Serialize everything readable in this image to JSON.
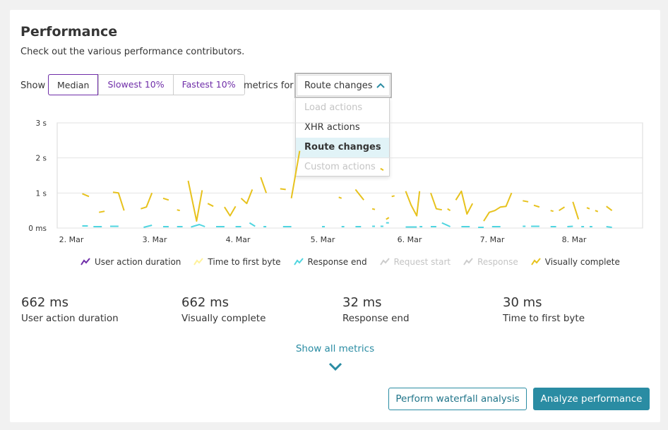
{
  "header": {
    "title": "Performance",
    "subtitle": "Check out the various performance contributors."
  },
  "controls": {
    "show_label": "Show",
    "segments": [
      {
        "label": "Median",
        "active": true
      },
      {
        "label": "Slowest 10%",
        "active": false
      },
      {
        "label": "Fastest 10%",
        "active": false
      }
    ],
    "metrics_for_label": "metrics for",
    "dropdown": {
      "selected": "Route changes",
      "expanded": true,
      "options": [
        {
          "label": "Load actions",
          "state": "disabled"
        },
        {
          "label": "XHR actions",
          "state": "enabled"
        },
        {
          "label": "Route changes",
          "state": "selected"
        },
        {
          "label": "Custom actions",
          "state": "disabled"
        }
      ]
    }
  },
  "chart_data": {
    "type": "line",
    "y_ticks": [
      "3 s",
      "2 s",
      "1 s",
      "0 ms"
    ],
    "ylim": [
      0,
      3
    ],
    "x_ticks": [
      "2. Mar",
      "3. Mar",
      "4. Mar",
      "5. Mar",
      "6. Mar",
      "7. Mar",
      "8. Mar"
    ],
    "legend": [
      {
        "name": "User action duration",
        "color": "#6f2da8",
        "enabled": true
      },
      {
        "name": "Time to first byte",
        "color": "#fff29a",
        "enabled": true
      },
      {
        "name": "Response end",
        "color": "#4fd5e0",
        "enabled": true
      },
      {
        "name": "Request start",
        "color": "#cccccc",
        "enabled": false
      },
      {
        "name": "Response",
        "color": "#cccccc",
        "enabled": false
      },
      {
        "name": "Visually complete",
        "color": "#e7c21d",
        "enabled": true
      }
    ],
    "series": [
      {
        "name": "Visually complete",
        "color": "#e7c21d",
        "segments": [
          [
            [
              1.5,
              0.98
            ],
            [
              1.62,
              0.9
            ]
          ],
          [
            [
              1.8,
              0.45
            ],
            [
              1.9,
              0.48
            ]
          ],
          [
            [
              2.05,
              1.02
            ],
            [
              2.15,
              1.0
            ],
            [
              2.25,
              0.5
            ]
          ],
          [
            [
              2.55,
              0.55
            ],
            [
              2.65,
              0.6
            ],
            [
              2.75,
              1.0
            ]
          ],
          [
            [
              2.95,
              0.85
            ],
            [
              3.05,
              0.8
            ]
          ],
          [
            [
              3.2,
              0.52
            ],
            [
              3.25,
              0.5
            ]
          ],
          [
            [
              3.4,
              1.35
            ],
            [
              3.55,
              0.2
            ],
            [
              3.65,
              1.08
            ]
          ],
          [
            [
              3.75,
              0.7
            ],
            [
              3.85,
              0.62
            ]
          ],
          [
            [
              4.05,
              0.6
            ],
            [
              4.15,
              0.35
            ],
            [
              4.25,
              0.62
            ]
          ],
          [
            [
              4.35,
              0.85
            ],
            [
              4.45,
              0.7
            ],
            [
              4.55,
              1.1
            ]
          ],
          [
            [
              4.7,
              1.45
            ],
            [
              4.8,
              1.0
            ]
          ],
          [
            [
              5.05,
              1.12
            ],
            [
              5.15,
              1.1
            ]
          ],
          [
            [
              5.25,
              0.85
            ],
            [
              5.4,
              2.2
            ]
          ],
          [
            [
              6.1,
              0.88
            ],
            [
              6.15,
              0.85
            ]
          ],
          [
            [
              6.4,
              1.1
            ],
            [
              6.55,
              0.8
            ]
          ],
          [
            [
              6.7,
              0.55
            ],
            [
              6.75,
              0.53
            ]
          ],
          [
            [
              6.85,
              1.7
            ],
            [
              6.9,
              1.65
            ]
          ],
          [
            [
              6.95,
              0.25
            ],
            [
              7.0,
              0.3
            ]
          ],
          [
            [
              7.05,
              0.9
            ],
            [
              7.1,
              0.92
            ]
          ],
          [
            [
              7.3,
              1.05
            ],
            [
              7.4,
              0.65
            ],
            [
              7.5,
              0.35
            ],
            [
              7.55,
              1.05
            ]
          ],
          [
            [
              7.75,
              1.0
            ],
            [
              7.85,
              0.55
            ],
            [
              7.95,
              0.52
            ]
          ],
          [
            [
              8.05,
              0.55
            ],
            [
              8.1,
              0.5
            ]
          ],
          [
            [
              8.2,
              0.8
            ],
            [
              8.3,
              1.05
            ],
            [
              8.4,
              0.4
            ],
            [
              8.5,
              0.7
            ]
          ],
          [
            [
              8.7,
              0.2
            ],
            [
              8.8,
              0.45
            ],
            [
              8.9,
              0.5
            ],
            [
              9.0,
              0.6
            ],
            [
              9.1,
              0.62
            ],
            [
              9.2,
              1.0
            ]
          ],
          [
            [
              9.4,
              0.78
            ],
            [
              9.5,
              0.75
            ]
          ],
          [
            [
              9.6,
              0.65
            ],
            [
              9.7,
              0.6
            ]
          ],
          [
            [
              9.9,
              0.5
            ],
            [
              9.95,
              0.48
            ]
          ],
          [
            [
              10.05,
              0.5
            ],
            [
              10.15,
              0.6
            ]
          ],
          [
            [
              10.3,
              0.75
            ],
            [
              10.4,
              0.25
            ]
          ],
          [
            [
              10.55,
              0.58
            ],
            [
              10.6,
              0.55
            ]
          ],
          [
            [
              10.7,
              0.5
            ],
            [
              10.75,
              0.47
            ]
          ],
          [
            [
              10.9,
              0.62
            ],
            [
              11.0,
              0.5
            ]
          ]
        ]
      },
      {
        "name": "Response end",
        "color": "#4fd5e0",
        "segments": [
          [
            [
              1.5,
              0.06
            ],
            [
              1.6,
              0.06
            ]
          ],
          [
            [
              1.7,
              0.04
            ],
            [
              1.85,
              0.04
            ]
          ],
          [
            [
              2.0,
              0.05
            ],
            [
              2.15,
              0.05
            ]
          ],
          [
            [
              2.6,
              0.02
            ],
            [
              2.75,
              0.08
            ]
          ],
          [
            [
              2.95,
              0.04
            ],
            [
              3.05,
              0.04
            ]
          ],
          [
            [
              3.2,
              0.04
            ],
            [
              3.3,
              0.04
            ]
          ],
          [
            [
              3.45,
              0.03
            ],
            [
              3.6,
              0.1
            ],
            [
              3.7,
              0.04
            ]
          ],
          [
            [
              3.9,
              0.04
            ],
            [
              4.05,
              0.04
            ]
          ],
          [
            [
              4.25,
              0.04
            ],
            [
              4.35,
              0.04
            ]
          ],
          [
            [
              4.5,
              0.15
            ],
            [
              4.6,
              0.05
            ]
          ],
          [
            [
              4.75,
              0.04
            ],
            [
              4.8,
              0.04
            ]
          ],
          [
            [
              5.1,
              0.04
            ],
            [
              5.25,
              0.04
            ]
          ],
          [
            [
              5.8,
              0.04
            ],
            [
              5.85,
              0.04
            ]
          ],
          [
            [
              6.15,
              0.04
            ],
            [
              6.2,
              0.04
            ]
          ],
          [
            [
              6.4,
              0.04
            ],
            [
              6.5,
              0.04
            ]
          ],
          [
            [
              6.7,
              0.05
            ],
            [
              6.75,
              0.05
            ]
          ],
          [
            [
              6.85,
              0.05
            ],
            [
              6.9,
              0.05
            ]
          ],
          [
            [
              6.95,
              0.15
            ],
            [
              7.0,
              0.15
            ]
          ],
          [
            [
              7.3,
              0.03
            ],
            [
              7.5,
              0.03
            ]
          ],
          [
            [
              7.55,
              0.04
            ],
            [
              7.6,
              0.04
            ]
          ],
          [
            [
              7.75,
              0.04
            ],
            [
              7.85,
              0.04
            ]
          ],
          [
            [
              7.95,
              0.15
            ],
            [
              8.1,
              0.04
            ]
          ],
          [
            [
              8.3,
              0.04
            ],
            [
              8.45,
              0.04
            ]
          ],
          [
            [
              8.6,
              0.02
            ],
            [
              8.7,
              0.02
            ]
          ],
          [
            [
              8.85,
              0.04
            ],
            [
              9.0,
              0.04
            ]
          ],
          [
            [
              9.4,
              0.05
            ],
            [
              9.45,
              0.05
            ]
          ],
          [
            [
              9.55,
              0.05
            ],
            [
              9.7,
              0.05
            ]
          ],
          [
            [
              9.9,
              0.04
            ],
            [
              10.0,
              0.04
            ]
          ],
          [
            [
              10.2,
              0.04
            ],
            [
              10.3,
              0.05
            ]
          ],
          [
            [
              10.45,
              0.04
            ],
            [
              10.5,
              0.04
            ]
          ],
          [
            [
              10.6,
              0.04
            ],
            [
              10.65,
              0.04
            ]
          ],
          [
            [
              10.9,
              0.04
            ],
            [
              11.0,
              0.02
            ]
          ]
        ]
      }
    ]
  },
  "kpis": [
    {
      "value": "662 ms",
      "label": "User action duration"
    },
    {
      "value": "662 ms",
      "label": "Visually complete"
    },
    {
      "value": "32 ms",
      "label": "Response end"
    },
    {
      "value": "30 ms",
      "label": "Time to first byte"
    }
  ],
  "show_all_label": "Show all metrics",
  "buttons": {
    "waterfall": "Perform waterfall analysis",
    "analyze": "Analyze performance"
  },
  "colors": {
    "accent": "#2a8ca3",
    "purple": "#6f2da8",
    "menu_highlight": "#e1f3f7"
  }
}
